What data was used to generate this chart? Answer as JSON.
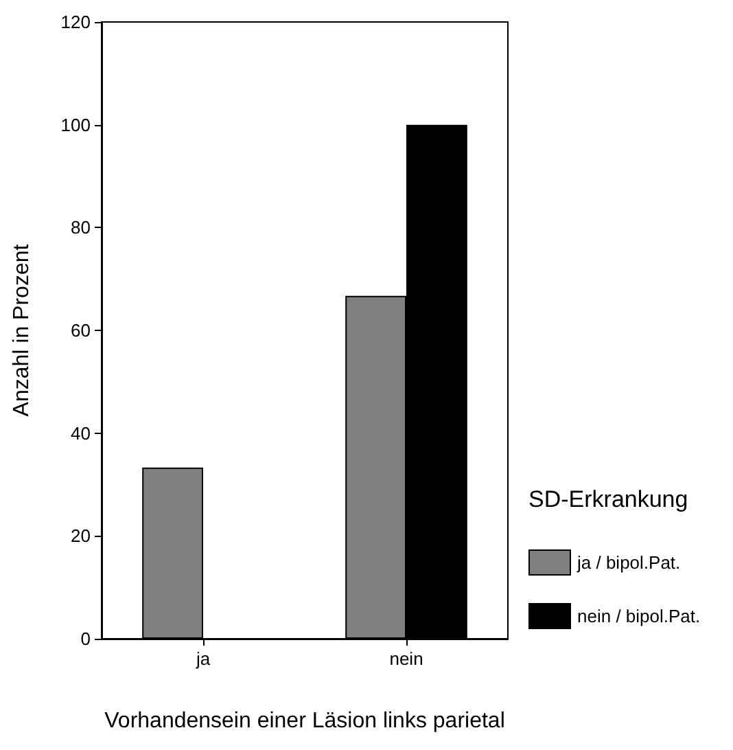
{
  "chart_data": {
    "type": "bar",
    "xlabel": "Vorhandensein einer Läsion links parietal",
    "ylabel": "Anzahl in Prozent",
    "legend_title": "SD-Erkrankung",
    "categories": [
      "ja",
      "nein"
    ],
    "series": [
      {
        "name": "ja / bipol.Pat.",
        "color": "#808080",
        "values": [
          33.3,
          66.7
        ]
      },
      {
        "name": "nein / bipol.Pat.",
        "color": "#000000",
        "values": [
          0,
          100
        ]
      }
    ],
    "ylim": [
      0,
      120
    ],
    "yticks": [
      0,
      20,
      40,
      60,
      80,
      100,
      120
    ],
    "grid": false,
    "legend": "right"
  }
}
